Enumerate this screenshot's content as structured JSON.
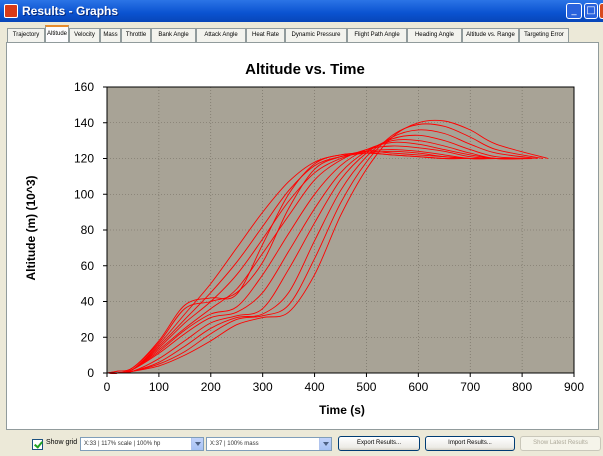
{
  "window": {
    "title": "Results - Graphs"
  },
  "tabs": [
    "Trajectory",
    "Altitude",
    "Velocity",
    "Mass",
    "Throttle",
    "Bank Angle",
    "Attack Angle",
    "Heat Rate",
    "Dynamic Pressure",
    "Flight Path Angle",
    "Heading Angle",
    "Altitude vs. Range",
    "Targeting Error"
  ],
  "active_tab": "Altitude",
  "chart_data": {
    "type": "line",
    "title": "Altitude vs. Time",
    "xlabel": "Time (s)",
    "ylabel": "Altitude (m) (10^3)",
    "xlim": [
      0,
      900
    ],
    "ylim": [
      0,
      160
    ],
    "xticks": [
      0,
      100,
      200,
      300,
      400,
      500,
      600,
      700,
      800,
      900
    ],
    "yticks": [
      0,
      20,
      40,
      60,
      80,
      100,
      120,
      140,
      160
    ],
    "grid": true,
    "plot_background": "#a8a396",
    "line_color": "#ff0000",
    "series": [
      {
        "x": [
          0,
          20,
          50,
          100,
          150,
          200,
          250,
          300,
          350,
          400,
          450,
          500,
          550,
          600,
          650,
          700,
          750,
          790
        ],
        "y": [
          0,
          0,
          2,
          16,
          33,
          50,
          70,
          90,
          107,
          118,
          122,
          123,
          122,
          121,
          120,
          120,
          120,
          120
        ]
      },
      {
        "x": [
          0,
          20,
          50,
          100,
          150,
          200,
          250,
          300,
          350,
          400,
          450,
          500,
          550,
          600,
          650,
          700,
          750,
          800
        ],
        "y": [
          0,
          0,
          2,
          15,
          30,
          45,
          62,
          82,
          102,
          116,
          121,
          123,
          124,
          123,
          121,
          120,
          120,
          120
        ]
      },
      {
        "x": [
          0,
          20,
          50,
          100,
          150,
          200,
          250,
          300,
          350,
          400,
          450,
          500,
          550,
          600,
          650,
          700,
          750,
          800
        ],
        "y": [
          0,
          0,
          2,
          14,
          28,
          40,
          55,
          75,
          96,
          112,
          120,
          124,
          125,
          124,
          122,
          120,
          120,
          120
        ]
      },
      {
        "x": [
          0,
          20,
          50,
          100,
          150,
          200,
          250,
          300,
          350,
          400,
          450,
          500,
          550,
          600,
          650,
          700,
          750,
          810
        ],
        "y": [
          0,
          0,
          2,
          13,
          25,
          36,
          47,
          67,
          88,
          108,
          119,
          125,
          127,
          126,
          124,
          121,
          120,
          120
        ]
      },
      {
        "x": [
          0,
          20,
          50,
          100,
          150,
          200,
          250,
          300,
          350,
          400,
          450,
          500,
          550,
          600,
          650,
          700,
          750,
          810
        ],
        "y": [
          0,
          0,
          2,
          12,
          24,
          33,
          37,
          55,
          78,
          100,
          116,
          125,
          129,
          128,
          125,
          122,
          120,
          120
        ]
      },
      {
        "x": [
          0,
          20,
          50,
          100,
          150,
          200,
          250,
          300,
          350,
          400,
          450,
          500,
          550,
          600,
          650,
          700,
          750,
          820
        ],
        "y": [
          0,
          0,
          2,
          11,
          22,
          31,
          34,
          45,
          68,
          92,
          112,
          124,
          130,
          130,
          127,
          123,
          120,
          120
        ]
      },
      {
        "x": [
          0,
          20,
          50,
          100,
          150,
          200,
          250,
          300,
          350,
          400,
          450,
          500,
          550,
          600,
          650,
          700,
          750,
          820
        ],
        "y": [
          0,
          0,
          1,
          8,
          18,
          28,
          32,
          36,
          58,
          84,
          108,
          123,
          131,
          133,
          130,
          125,
          121,
          120
        ]
      },
      {
        "x": [
          0,
          20,
          50,
          100,
          150,
          200,
          250,
          300,
          350,
          400,
          450,
          500,
          550,
          600,
          650,
          700,
          750,
          830
        ],
        "y": [
          0,
          0,
          1,
          6,
          15,
          25,
          31,
          33,
          45,
          74,
          102,
          121,
          132,
          136,
          134,
          128,
          123,
          120
        ]
      },
      {
        "x": [
          0,
          20,
          50,
          100,
          150,
          200,
          250,
          300,
          350,
          400,
          450,
          500,
          550,
          600,
          650,
          700,
          750,
          840
        ],
        "y": [
          0,
          0,
          1,
          5,
          12,
          22,
          30,
          32,
          38,
          64,
          95,
          118,
          133,
          139,
          138,
          132,
          125,
          120
        ]
      },
      {
        "x": [
          0,
          20,
          50,
          100,
          150,
          200,
          250,
          300,
          350,
          400,
          450,
          500,
          550,
          600,
          650,
          700,
          750,
          850
        ],
        "y": [
          0,
          0,
          1,
          4,
          10,
          18,
          27,
          31,
          34,
          55,
          88,
          114,
          132,
          140,
          141,
          136,
          128,
          120
        ]
      },
      {
        "x": [
          0,
          20,
          50,
          100,
          150,
          200,
          250,
          300,
          350,
          400,
          450,
          500,
          550,
          600,
          650,
          700,
          750,
          800
        ],
        "y": [
          0,
          1,
          3,
          18,
          38,
          42,
          44,
          72,
          100,
          117,
          122,
          123,
          122,
          121,
          120,
          120,
          120,
          120
        ]
      },
      {
        "x": [
          0,
          20,
          50,
          100,
          150,
          200,
          250,
          300,
          350,
          400,
          450,
          500,
          550,
          600,
          650,
          700,
          750,
          800
        ],
        "y": [
          0,
          1,
          3,
          17,
          36,
          40,
          45,
          62,
          92,
          114,
          121,
          124,
          123,
          122,
          121,
          120,
          120,
          120
        ]
      }
    ]
  },
  "controls": {
    "show_grid_label": "Show grid",
    "x_combo": "X:33 | 117% scale | 100% hp",
    "y_combo": "X:37 | 100% mass",
    "export_label": "Export Results...",
    "import_label": "Import Results...",
    "show_latest_label": "Show Latest Results"
  }
}
